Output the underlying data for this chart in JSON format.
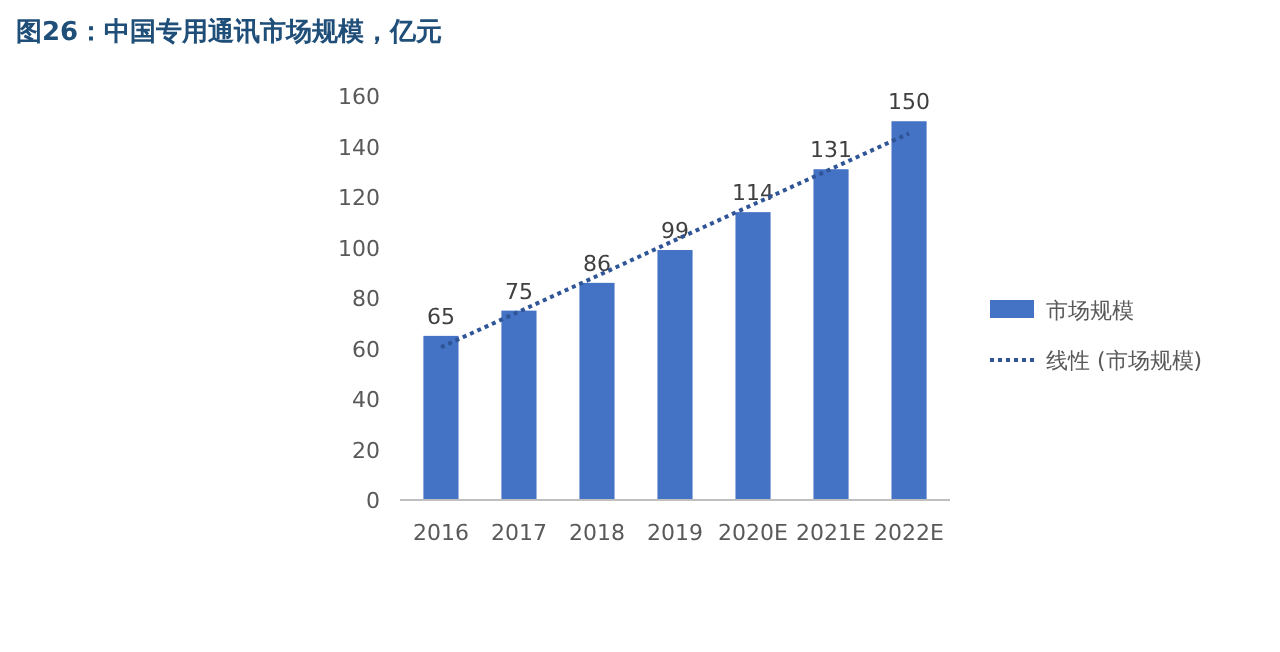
{
  "chart_data": {
    "type": "bar",
    "title": "图26：中国专用通讯市场规模，亿元",
    "categories": [
      "2016",
      "2017",
      "2018",
      "2019",
      "2020E",
      "2021E",
      "2022E"
    ],
    "series": [
      {
        "name": "市场规模",
        "color": "#4472c4",
        "values": [
          65,
          75,
          86,
          99,
          114,
          131,
          150
        ],
        "value_labels": [
          "65",
          "75",
          "86",
          "99",
          "114",
          "131",
          "150"
        ]
      },
      {
        "name": "线性 (市场规模)",
        "type": "line",
        "color": "#2f5597",
        "line_style": "dotted",
        "values": [
          60.5,
          74.6,
          88.7,
          102.9,
          117.0,
          131.1,
          145.2
        ]
      }
    ],
    "ylim": [
      0,
      160
    ],
    "yticks": [
      0,
      20,
      40,
      60,
      80,
      100,
      120,
      140,
      160
    ],
    "grid": false,
    "legend": "right"
  }
}
